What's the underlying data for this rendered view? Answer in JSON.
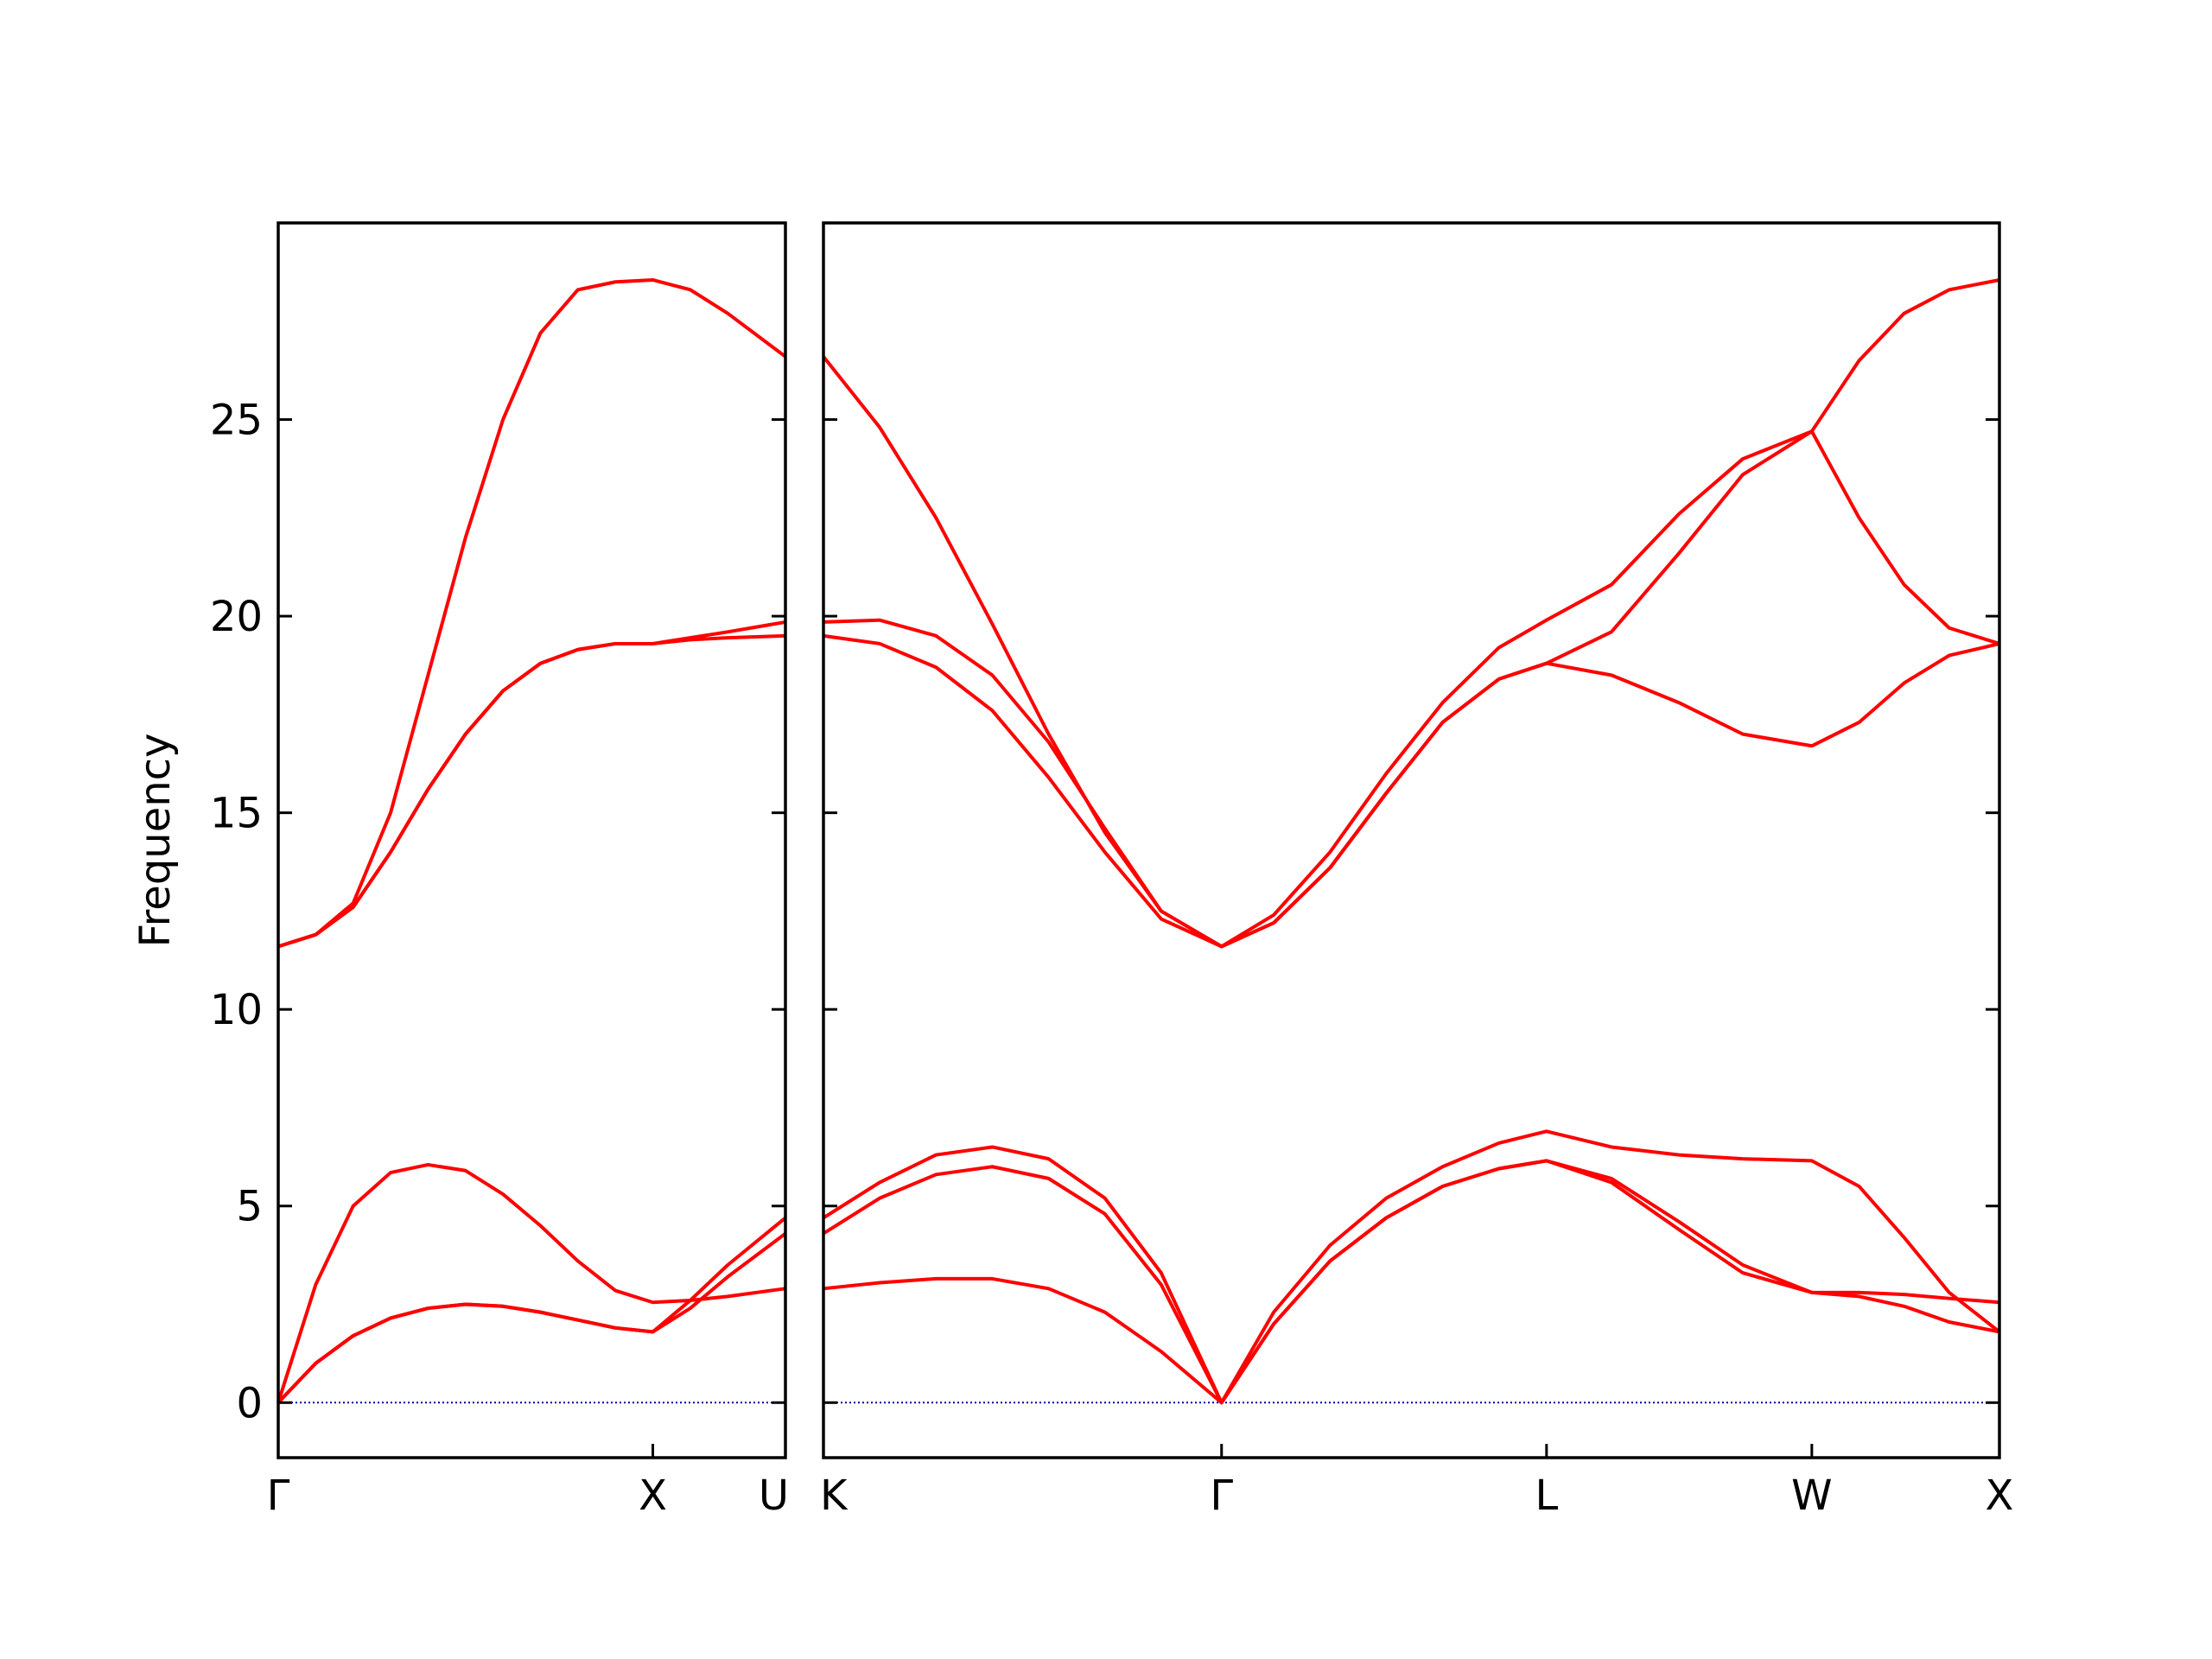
{
  "chart_data": [
    {
      "type": "line",
      "ylabel": "Frequency",
      "color": "#ff0000",
      "xlim": [
        0,
        1.354
      ],
      "ylim": [
        -1.4,
        30
      ],
      "yticks": [
        0,
        5,
        10,
        15,
        20,
        25
      ],
      "ytick_labels": true,
      "xticks": [
        {
          "value": 0,
          "label": "Γ"
        },
        {
          "value": 1,
          "label": "X"
        },
        {
          "value": 1.354,
          "label": "U"
        }
      ],
      "hline": 0,
      "hline_color": "#0000aa",
      "x": [
        0,
        0.1,
        0.2,
        0.3,
        0.4,
        0.5,
        0.6,
        0.7,
        0.8,
        0.9,
        1.0,
        1.1,
        1.2,
        1.354
      ],
      "bands": [
        [
          0,
          1.0,
          1.7,
          2.15,
          2.4,
          2.5,
          2.45,
          2.3,
          2.1,
          1.9,
          1.8,
          2.4,
          3.2,
          4.3
        ],
        [
          0,
          1.0,
          1.7,
          2.15,
          2.4,
          2.5,
          2.45,
          2.3,
          2.1,
          1.9,
          1.8,
          2.6,
          3.5,
          4.7
        ],
        [
          0,
          3.0,
          5.0,
          5.85,
          6.05,
          5.9,
          5.3,
          4.5,
          3.6,
          2.85,
          2.55,
          2.6,
          2.7,
          2.9
        ],
        [
          11.6,
          11.9,
          12.6,
          14.0,
          15.6,
          17.0,
          18.1,
          18.8,
          19.15,
          19.3,
          19.3,
          19.4,
          19.45,
          19.5
        ],
        [
          11.6,
          11.9,
          12.6,
          14.0,
          15.6,
          17.0,
          18.1,
          18.8,
          19.15,
          19.3,
          19.3,
          19.45,
          19.6,
          19.85
        ],
        [
          11.6,
          11.9,
          12.7,
          15.0,
          18.5,
          22.0,
          25.0,
          27.2,
          28.3,
          28.5,
          28.55,
          28.3,
          27.7,
          26.6
        ]
      ]
    },
    {
      "type": "line",
      "color": "#ff0000",
      "xlim": [
        0,
        3.134
      ],
      "ylim": [
        -1.4,
        30
      ],
      "yticks": [
        0,
        5,
        10,
        15,
        20,
        25
      ],
      "ytick_labels": false,
      "xticks": [
        {
          "value": 0,
          "label": "K"
        },
        {
          "value": 1.061,
          "label": "Γ"
        },
        {
          "value": 1.927,
          "label": "L"
        },
        {
          "value": 2.634,
          "label": "W"
        },
        {
          "value": 3.134,
          "label": "X"
        }
      ],
      "hline": 0,
      "hline_color": "#0000aa",
      "x": [
        0,
        0.15,
        0.3,
        0.45,
        0.6,
        0.75,
        0.9,
        1.061,
        1.2,
        1.35,
        1.5,
        1.65,
        1.8,
        1.927,
        2.1,
        2.28,
        2.45,
        2.634,
        2.76,
        2.88,
        3.0,
        3.134
      ],
      "bands": [
        [
          2.9,
          3.05,
          3.15,
          3.15,
          2.9,
          2.3,
          1.3,
          0,
          2.0,
          3.6,
          4.7,
          5.5,
          5.95,
          6.15,
          5.6,
          4.4,
          3.3,
          2.8,
          2.7,
          2.45,
          2.05,
          1.8
        ],
        [
          4.3,
          5.2,
          5.8,
          6.0,
          5.7,
          4.8,
          3.0,
          0,
          2.0,
          3.6,
          4.7,
          5.5,
          5.95,
          6.15,
          5.7,
          4.6,
          3.5,
          2.8,
          2.8,
          2.75,
          2.65,
          2.55
        ],
        [
          4.7,
          5.6,
          6.3,
          6.5,
          6.2,
          5.2,
          3.3,
          0,
          2.3,
          4.0,
          5.2,
          6.0,
          6.6,
          6.9,
          6.5,
          6.3,
          6.2,
          6.15,
          5.5,
          4.2,
          2.8,
          1.8
        ],
        [
          19.5,
          19.3,
          18.7,
          17.6,
          15.9,
          14.0,
          12.3,
          11.6,
          12.2,
          13.6,
          15.5,
          17.3,
          18.4,
          18.8,
          18.5,
          17.8,
          17.0,
          16.7,
          17.3,
          18.3,
          19.0,
          19.3
        ],
        [
          19.85,
          19.9,
          19.5,
          18.5,
          16.8,
          14.6,
          12.5,
          11.6,
          12.2,
          13.6,
          15.5,
          17.3,
          18.4,
          18.8,
          19.6,
          21.6,
          23.6,
          24.7,
          22.5,
          20.8,
          19.7,
          19.3
        ],
        [
          26.6,
          24.8,
          22.5,
          19.8,
          17.0,
          14.5,
          12.5,
          11.6,
          12.4,
          14.0,
          16.0,
          17.8,
          19.2,
          19.9,
          20.8,
          22.6,
          24.0,
          24.7,
          26.5,
          27.7,
          28.3,
          28.55
        ]
      ]
    }
  ]
}
